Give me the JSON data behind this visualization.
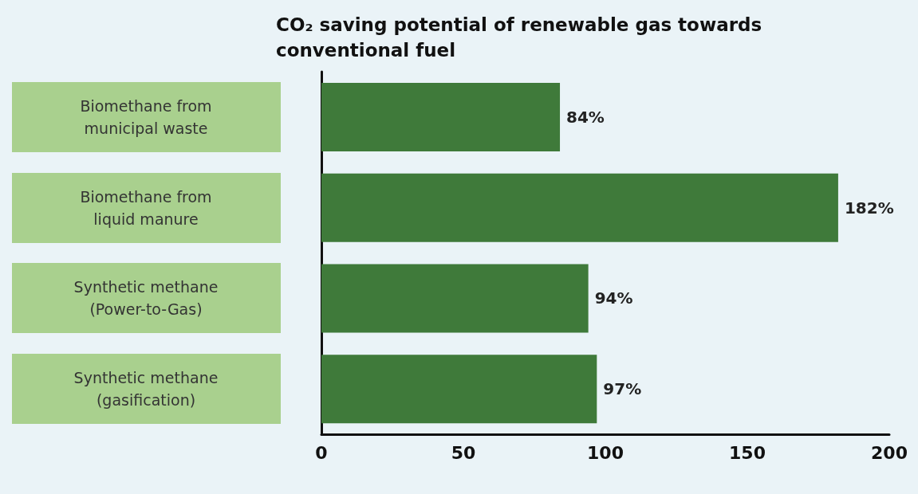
{
  "chart_data": {
    "type": "bar",
    "orientation": "horizontal",
    "title": "CO₂ saving potential of renewable gas towards conventional fuel",
    "categories": [
      "Biomethane from municipal waste",
      "Biomethane from liquid manure",
      "Synthetic methane (Power-to-Gas)",
      "Synthetic methane (gasification)"
    ],
    "values": [
      84,
      182,
      94,
      97
    ],
    "value_labels": [
      "84%",
      "182%",
      "94%",
      "97%"
    ],
    "color": "#3f7a3a",
    "xlim": [
      0,
      200
    ],
    "xticks": [
      0,
      50,
      100,
      150,
      200
    ],
    "grid": false
  }
}
